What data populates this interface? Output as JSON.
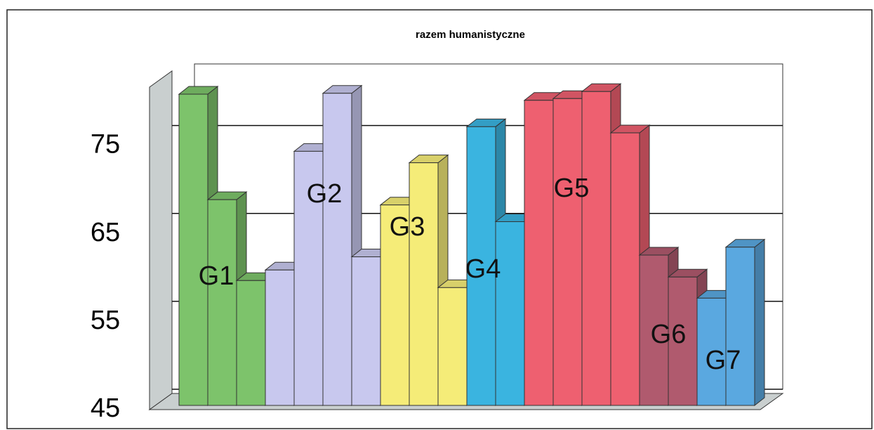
{
  "chart_data": {
    "type": "bar3d",
    "title": "razem humanistyczne",
    "groups": [
      {
        "name": "G1",
        "color": "#7dc36b",
        "values": [
          80.4,
          68.4,
          59.2
        ]
      },
      {
        "name": "G2",
        "color": "#c8c8ee",
        "values": [
          60.4,
          73.9,
          80.5,
          61.9
        ]
      },
      {
        "name": "G3",
        "color": "#f5ec78",
        "values": [
          67.8,
          72.6,
          58.4
        ]
      },
      {
        "name": "G4",
        "color": "#3ab4e0",
        "values": [
          76.7,
          65.9
        ]
      },
      {
        "name": "G5",
        "color": "#ee6070",
        "values": [
          79.7,
          79.9,
          80.7,
          76.0
        ]
      },
      {
        "name": "G6",
        "color": "#b05a6e",
        "values": [
          62.1,
          59.6
        ]
      },
      {
        "name": "G7",
        "color": "#5aa8e0",
        "values": [
          57.2,
          63.0
        ]
      }
    ],
    "ylim": [
      45,
      82
    ],
    "yticks": [
      45,
      55,
      65,
      75
    ],
    "grid": true
  }
}
